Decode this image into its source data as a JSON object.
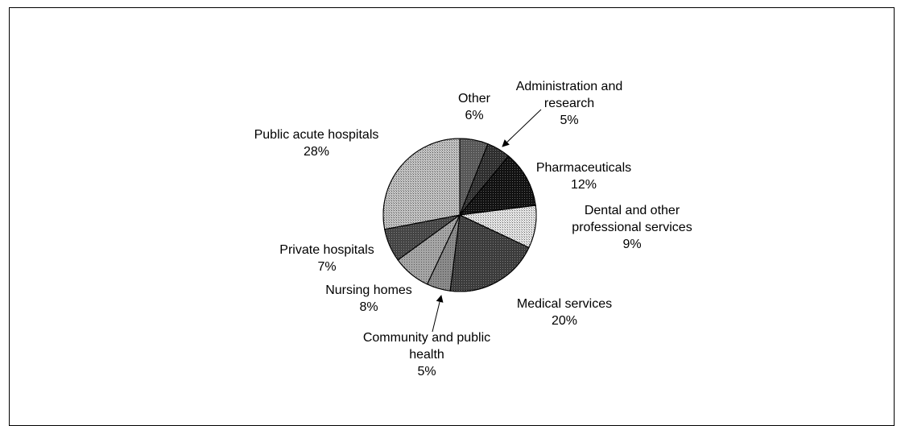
{
  "chart_data": {
    "type": "pie",
    "title": "",
    "start_angle_deg": 0,
    "direction": "clockwise",
    "slices": [
      {
        "label_lines": [
          "Other",
          "6%"
        ],
        "label": "Other",
        "value": 6,
        "display": "6%",
        "fill": "#575757",
        "pattern": "dots-dark"
      },
      {
        "label_lines": [
          "Administration and",
          "research",
          "5%"
        ],
        "label": "Administration and research",
        "value": 5,
        "display": "5%",
        "fill": "#2e2e2e",
        "pattern": "dots-dark"
      },
      {
        "label_lines": [
          "Pharmaceuticals",
          "12%"
        ],
        "label": "Pharmaceuticals",
        "value": 12,
        "display": "12%",
        "fill": "#111111",
        "pattern": "dots-dark"
      },
      {
        "label_lines": [
          "Dental and other",
          "professional services",
          "9%"
        ],
        "label": "Dental and other professional services",
        "value": 9,
        "display": "9%",
        "fill": "#e6e6e6",
        "pattern": "dots-light"
      },
      {
        "label_lines": [
          "Medical services",
          "20%"
        ],
        "label": "Medical services",
        "value": 20,
        "display": "20%",
        "fill": "#3b3b3b",
        "pattern": "dots-dark"
      },
      {
        "label_lines": [
          "Community and public",
          "health",
          "5%"
        ],
        "label": "Community and public health",
        "value": 5,
        "display": "5%",
        "fill": "#8c8c8c",
        "pattern": "dots-mid"
      },
      {
        "label_lines": [
          "Nursing homes",
          "8%"
        ],
        "label": "Nursing homes",
        "value": 8,
        "display": "8%",
        "fill": "#a6a6a6",
        "pattern": "dots-mid"
      },
      {
        "label_lines": [
          "Private hospitals",
          "7%"
        ],
        "label": "Private hospitals",
        "value": 7,
        "display": "7%",
        "fill": "#444444",
        "pattern": "dots-dark"
      },
      {
        "label_lines": [
          "Public acute hospitals",
          "28%"
        ],
        "label": "Public acute hospitals",
        "value": 28,
        "display": "28%",
        "fill": "#c4c4c4",
        "pattern": "dots-light"
      }
    ]
  }
}
